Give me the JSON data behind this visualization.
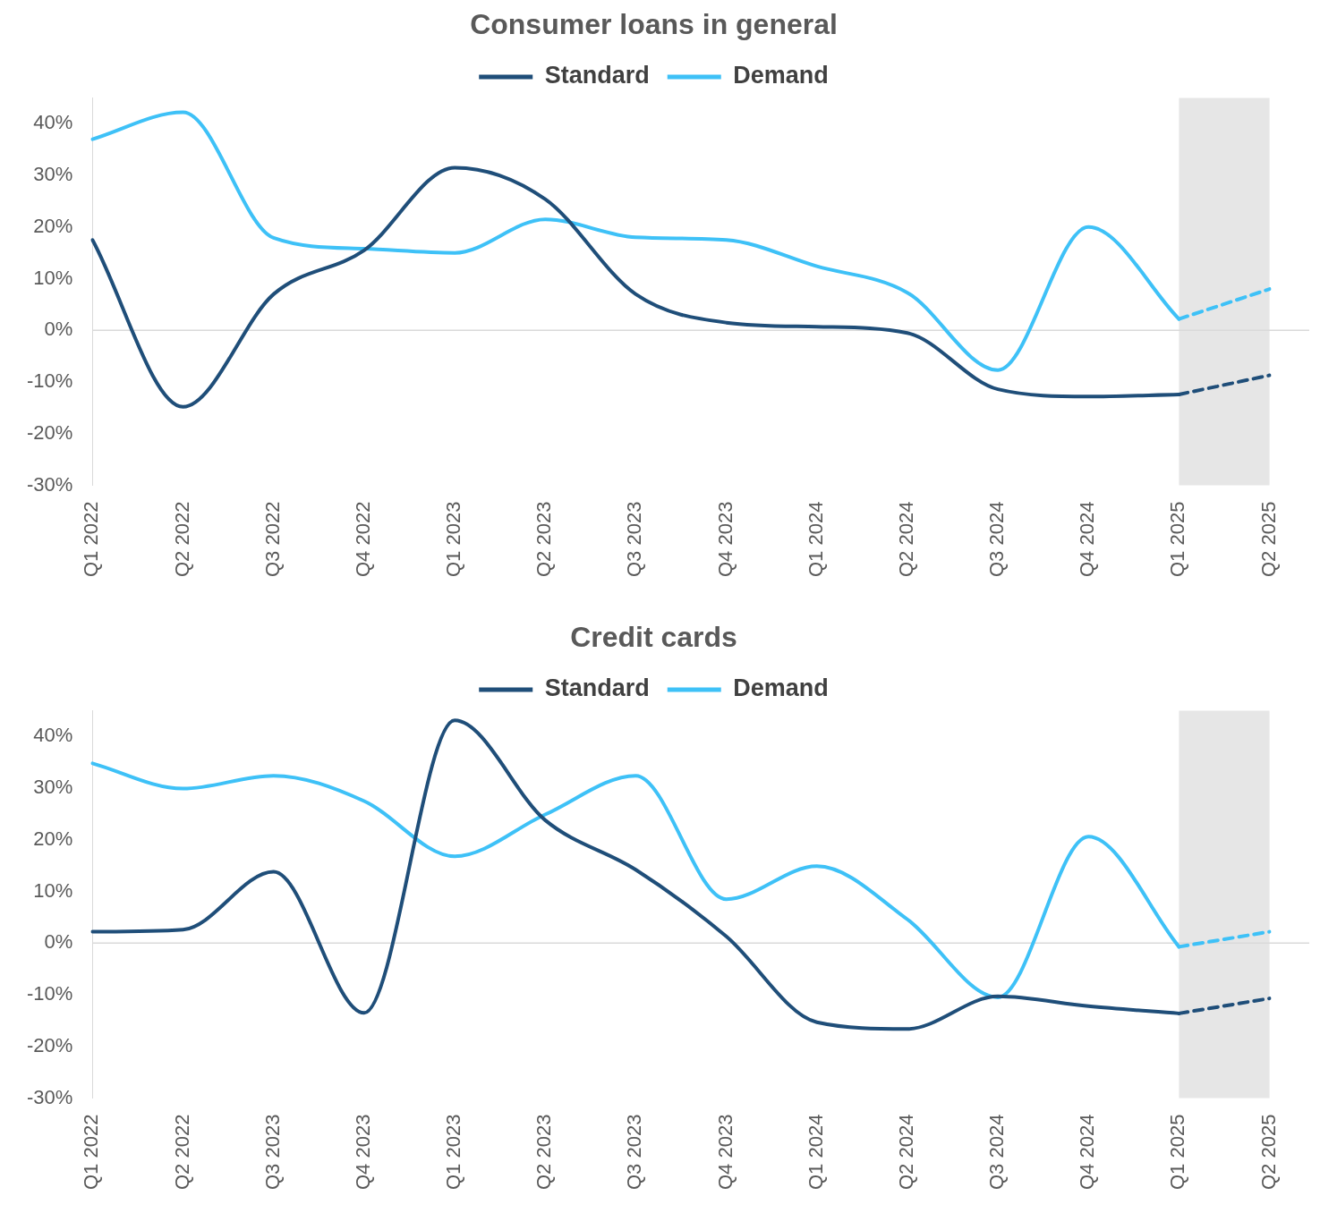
{
  "chart_data": [
    {
      "type": "line",
      "title": "Consumer loans in general",
      "categories": [
        "Q1 2022",
        "Q2 2022",
        "Q3 2022",
        "Q4 2022",
        "Q1 2023",
        "Q2 2023",
        "Q3 2023",
        "Q4 2023",
        "Q1 2024",
        "Q2 2024",
        "Q3 2024",
        "Q4 2024",
        "Q1 2025",
        "Q2 2025"
      ],
      "series": [
        {
          "name": "Standard",
          "color": "#1f4e79",
          "values": [
            17.5,
            -14.8,
            7,
            15.5,
            31.5,
            25.4,
            7,
            1.5,
            0.7,
            -0.5,
            -11.4,
            -12.8,
            -12.4,
            null
          ]
        },
        {
          "name": "Demand",
          "color": "#3ec1f7",
          "values": [
            37,
            42.2,
            17.9,
            15.8,
            15,
            21.5,
            18,
            17.5,
            12.4,
            7.3,
            -7.7,
            20,
            2.2,
            null
          ]
        },
        {
          "color": "#1f4e79",
          "line_style": "dashed",
          "values": [
            null,
            null,
            null,
            null,
            null,
            null,
            null,
            null,
            null,
            null,
            null,
            null,
            -12.4,
            -8.7
          ]
        },
        {
          "color": "#3ec1f7",
          "line_style": "dashed",
          "values": [
            null,
            null,
            null,
            null,
            null,
            null,
            null,
            null,
            null,
            null,
            null,
            null,
            2.2,
            8
          ]
        }
      ],
      "ylim": [
        -30,
        45
      ],
      "yticks": [
        {
          "value": -30,
          "label": "-30%"
        },
        {
          "value": -20,
          "label": "-20%"
        },
        {
          "value": -10,
          "label": "-10%"
        },
        {
          "value": 0,
          "label": "0%"
        },
        {
          "value": 10,
          "label": "10%"
        },
        {
          "value": 20,
          "label": "20%"
        },
        {
          "value": 30,
          "label": "30%"
        },
        {
          "value": 40,
          "label": "40%"
        }
      ],
      "bands": [
        {
          "axis": "x",
          "from": "Q1 2025",
          "to": "Q2 2025",
          "color": "#e6e6e6"
        }
      ],
      "ref_lines": [
        {
          "axis": "y",
          "value": 0,
          "color": "#d9d9d9"
        }
      ],
      "grid": false,
      "legend": "top",
      "marker": "none",
      "line_style": "solid"
    },
    {
      "type": "line",
      "title": "Credit cards",
      "categories": [
        "Q1 2022",
        "Q2 2022",
        "Q3 2023",
        "Q4 2023",
        "Q1 2023",
        "Q2 2023",
        "Q3 2023",
        "Q4 2023",
        "Q1 2024",
        "Q2 2024",
        "Q3 2024",
        "Q4 2024",
        "Q1 2025",
        "Q2 2025"
      ],
      "series": [
        {
          "name": "Standard",
          "color": "#1f4e79",
          "values": [
            2.2,
            2.6,
            13.8,
            -13.5,
            43.1,
            23.8,
            14.2,
            1.3,
            -15.3,
            -16.6,
            -10.3,
            -12.2,
            -13.6,
            null
          ]
        },
        {
          "name": "Demand",
          "color": "#3ec1f7",
          "values": [
            34.8,
            29.9,
            32.4,
            27.5,
            16.8,
            24.9,
            32.4,
            8.5,
            14.9,
            4.6,
            -10.5,
            20.6,
            -0.7,
            null
          ]
        },
        {
          "color": "#1f4e79",
          "line_style": "dashed",
          "values": [
            null,
            null,
            null,
            null,
            null,
            null,
            null,
            null,
            null,
            null,
            null,
            null,
            -13.6,
            -10.7
          ]
        },
        {
          "color": "#3ec1f7",
          "line_style": "dashed",
          "values": [
            null,
            null,
            null,
            null,
            null,
            null,
            null,
            null,
            null,
            null,
            null,
            null,
            -0.7,
            2.2
          ]
        }
      ],
      "ylim": [
        -30,
        45
      ],
      "yticks": [
        {
          "value": -30,
          "label": "-30%"
        },
        {
          "value": -20,
          "label": "-20%"
        },
        {
          "value": -10,
          "label": "-10%"
        },
        {
          "value": 0,
          "label": "0%"
        },
        {
          "value": 10,
          "label": "10%"
        },
        {
          "value": 20,
          "label": "20%"
        },
        {
          "value": 30,
          "label": "30%"
        },
        {
          "value": 40,
          "label": "40%"
        }
      ],
      "bands": [
        {
          "axis": "x",
          "from": "Q1 2025",
          "to": "Q2 2025",
          "color": "#e6e6e6"
        }
      ],
      "ref_lines": [
        {
          "axis": "y",
          "value": 0,
          "color": "#d9d9d9"
        }
      ],
      "grid": false,
      "legend": "top",
      "marker": "none",
      "line_style": "solid"
    }
  ]
}
